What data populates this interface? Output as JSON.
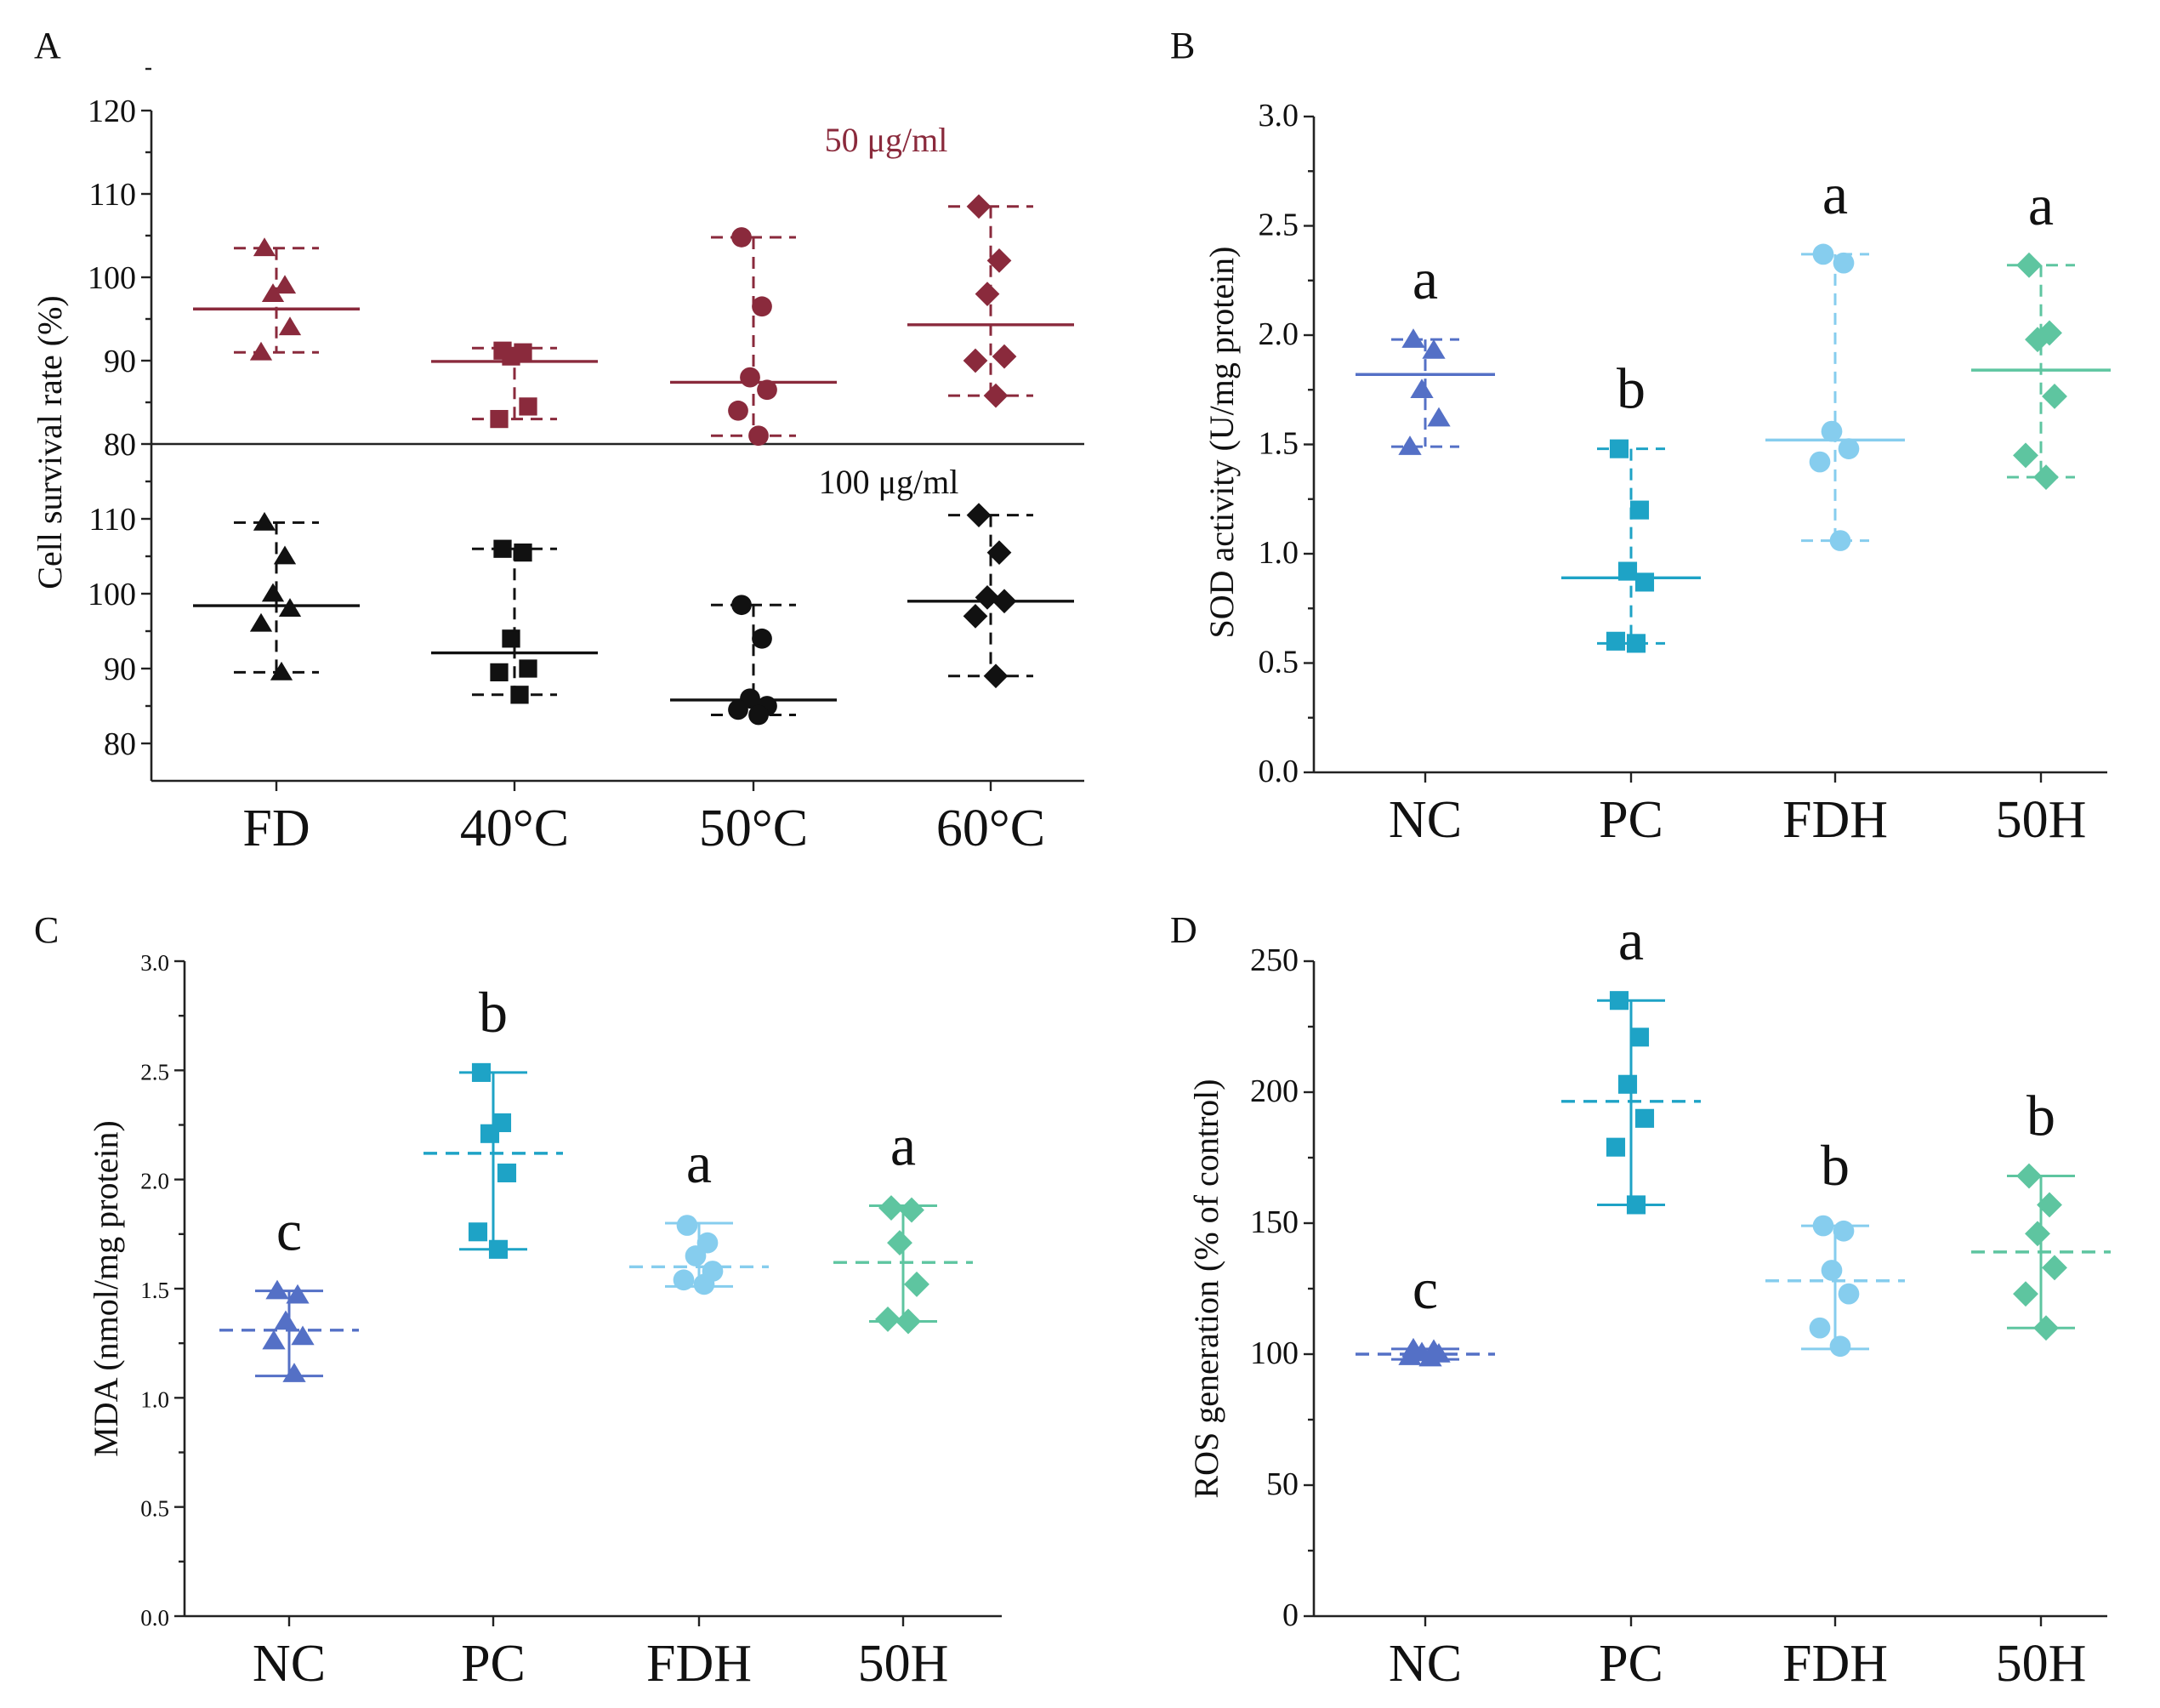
{
  "figure": {
    "panels": [
      "A",
      "B",
      "C",
      "D"
    ]
  },
  "chart_data": [
    {
      "id": "A",
      "type": "scatter",
      "panel_label": "A",
      "ylabel": "Cell survival rate (%)",
      "categories": [
        "FD",
        "40°C",
        "50°C",
        "60°C"
      ],
      "subplots": [
        {
          "name": "top",
          "annotation": "50 μg/ml",
          "color": "#8a2a3c",
          "ylim": [
            80,
            120
          ],
          "yticks": [
            "80",
            "90",
            "100",
            "110",
            "120"
          ],
          "groups": [
            {
              "marker": "triangle",
              "points": [
                103.5,
                99,
                98,
                94,
                91
              ],
              "mean": 96.2,
              "range": [
                91,
                103.5
              ]
            },
            {
              "marker": "square",
              "points": [
                91.2,
                91,
                90.5,
                84.5,
                83
              ],
              "mean": 89.9,
              "range": [
                83,
                91.5
              ]
            },
            {
              "marker": "circle",
              "points": [
                104.8,
                96.5,
                88,
                86.5,
                84,
                81
              ],
              "mean": 87.4,
              "range": [
                81,
                104.8
              ]
            },
            {
              "marker": "diamond",
              "points": [
                108.5,
                102,
                98,
                90.5,
                90,
                85.8
              ],
              "mean": 94.3,
              "range": [
                85.8,
                108.5
              ]
            }
          ]
        },
        {
          "name": "bottom",
          "annotation": "100 μg/ml",
          "color": "#111111",
          "ylim": [
            75,
            120
          ],
          "yticks": [
            "80",
            "90",
            "100",
            "110"
          ],
          "groups": [
            {
              "marker": "triangle",
              "points": [
                109.5,
                105,
                100,
                98,
                96,
                89.5
              ],
              "mean": 98.4,
              "range": [
                89.5,
                109.5
              ]
            },
            {
              "marker": "square",
              "points": [
                106,
                105.5,
                94,
                90,
                89.5,
                86.5
              ],
              "mean": 92.1,
              "range": [
                86.5,
                106
              ]
            },
            {
              "marker": "circle",
              "points": [
                98.5,
                94,
                86,
                85,
                84.5,
                83.8
              ],
              "mean": 85.8,
              "range": [
                83.8,
                98.5
              ]
            },
            {
              "marker": "diamond",
              "points": [
                110.5,
                105.5,
                99.5,
                99,
                97,
                89
              ],
              "mean": 99,
              "range": [
                89,
                110.5
              ]
            }
          ]
        }
      ]
    },
    {
      "id": "B",
      "type": "scatter",
      "panel_label": "B",
      "ylabel": "SOD activity (U/mg protein)",
      "categories": [
        "NC",
        "PC",
        "FDH",
        "50H"
      ],
      "ylim": [
        0,
        3
      ],
      "yticks": [
        "0.0",
        "0.5",
        "1.0",
        "1.5",
        "2.0",
        "2.5",
        "3.0"
      ],
      "significance": [
        "a",
        "b",
        "a",
        "a"
      ],
      "groups": [
        {
          "color": "#5470c6",
          "marker": "triangle",
          "points": [
            1.98,
            1.93,
            1.75,
            1.62,
            1.49
          ],
          "mean": 1.82,
          "range": [
            1.49,
            1.98
          ],
          "mean_style": "solid",
          "range_style": "dashed"
        },
        {
          "color": "#1ea3c6",
          "marker": "square",
          "points": [
            1.48,
            1.2,
            0.92,
            0.87,
            0.6,
            0.59
          ],
          "mean": 0.89,
          "range": [
            0.59,
            1.48
          ],
          "mean_style": "solid",
          "range_style": "dashed"
        },
        {
          "color": "#86cdee",
          "marker": "circle",
          "points": [
            2.37,
            2.33,
            1.56,
            1.48,
            1.42,
            1.06
          ],
          "mean": 1.52,
          "range": [
            1.06,
            2.37
          ],
          "mean_style": "solid",
          "range_style": "dashed"
        },
        {
          "color": "#5ec5a0",
          "marker": "diamond",
          "points": [
            2.32,
            2.01,
            1.98,
            1.72,
            1.45,
            1.35
          ],
          "mean": 1.84,
          "range": [
            1.35,
            2.32
          ],
          "mean_style": "solid",
          "range_style": "dashed"
        }
      ]
    },
    {
      "id": "C",
      "type": "scatter",
      "panel_label": "C",
      "ylabel": "MDA  (nmol/mg protein)",
      "categories": [
        "NC",
        "PC",
        "FDH",
        "50H"
      ],
      "ylim": [
        0,
        3
      ],
      "yticks": [
        "0.0",
        "0.5",
        "1.0",
        "1.5",
        "2.0",
        "2.5",
        "3.0"
      ],
      "significance": [
        "c",
        "b",
        "a",
        "a"
      ],
      "groups": [
        {
          "color": "#5470c6",
          "marker": "triangle",
          "points": [
            1.49,
            1.47,
            1.35,
            1.28,
            1.26,
            1.11
          ],
          "mean": 1.31,
          "range": [
            1.1,
            1.49
          ],
          "mean_style": "dashed",
          "range_style": "solid"
        },
        {
          "color": "#1ea3c6",
          "marker": "square",
          "points": [
            2.49,
            2.26,
            2.21,
            2.03,
            1.76,
            1.68
          ],
          "mean": 2.12,
          "range": [
            1.68,
            2.49
          ],
          "mean_style": "dashed",
          "range_style": "solid"
        },
        {
          "color": "#86cdee",
          "marker": "circle",
          "points": [
            1.79,
            1.71,
            1.65,
            1.58,
            1.54,
            1.52
          ],
          "mean": 1.6,
          "range": [
            1.51,
            1.8
          ],
          "mean_style": "dashed",
          "range_style": "solid"
        },
        {
          "color": "#5ec5a0",
          "marker": "diamond",
          "points": [
            1.87,
            1.86,
            1.71,
            1.52,
            1.36,
            1.35
          ],
          "mean": 1.62,
          "range": [
            1.35,
            1.88
          ],
          "mean_style": "dashed",
          "range_style": "solid"
        }
      ]
    },
    {
      "id": "D",
      "type": "scatter",
      "panel_label": "D",
      "ylabel": "ROS generation (% of  control)",
      "categories": [
        "NC",
        "PC",
        "FDH",
        "50H"
      ],
      "ylim": [
        0,
        250
      ],
      "yticks": [
        "0",
        "50",
        "100",
        "150",
        "200",
        "250"
      ],
      "significance": [
        "c",
        "a",
        "b",
        "b"
      ],
      "groups": [
        {
          "color": "#5470c6",
          "marker": "triangle",
          "points": [
            102,
            101.5,
            100.5,
            100,
            99,
            98.5
          ],
          "mean": 100,
          "range": [
            98,
            102
          ],
          "mean_style": "dashed",
          "range_style": "solid"
        },
        {
          "color": "#1ea3c6",
          "marker": "square",
          "points": [
            235,
            221,
            203,
            190,
            179,
            157
          ],
          "mean": 196.5,
          "range": [
            157,
            235
          ],
          "mean_style": "dashed",
          "range_style": "solid"
        },
        {
          "color": "#86cdee",
          "marker": "circle",
          "points": [
            149,
            147,
            132,
            123,
            110,
            103
          ],
          "mean": 128,
          "range": [
            102,
            149
          ],
          "mean_style": "dashed",
          "range_style": "solid"
        },
        {
          "color": "#5ec5a0",
          "marker": "diamond",
          "points": [
            168,
            157,
            146,
            133,
            123,
            110
          ],
          "mean": 139,
          "range": [
            110,
            168
          ],
          "mean_style": "dashed",
          "range_style": "solid"
        }
      ]
    }
  ]
}
